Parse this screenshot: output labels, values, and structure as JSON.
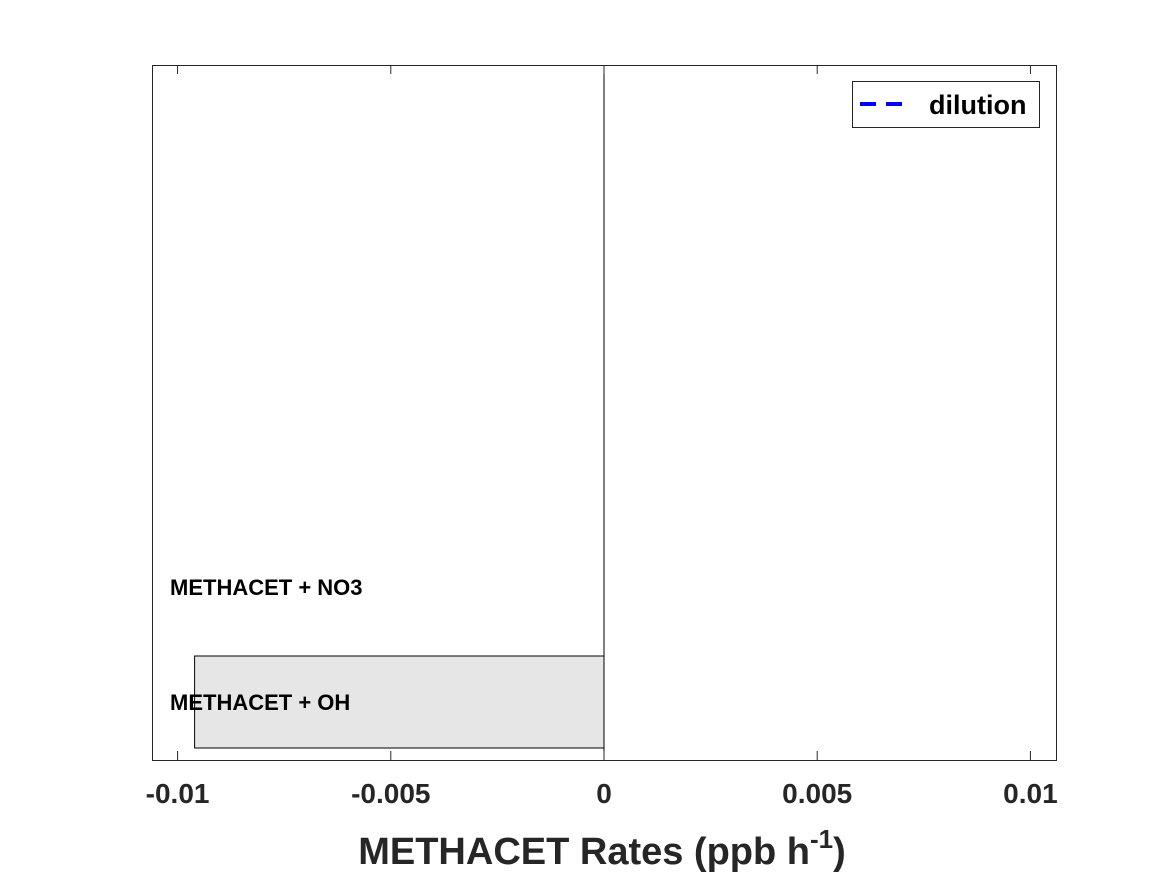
{
  "chart_data": {
    "type": "bar",
    "orientation": "horizontal",
    "categories": [
      "METHACET + OH",
      "METHACET + NO3"
    ],
    "values": [
      -0.0096,
      0
    ],
    "xlim": [
      -0.0106,
      0.0106
    ],
    "xticks": [
      -0.01,
      -0.005,
      0,
      0.005,
      0.01
    ],
    "xtick_labels": [
      "-0.01",
      "-0.005",
      "0",
      "0.005",
      "0.01"
    ],
    "xlabel": "METHACET Rates (ppb h",
    "xlabel_superscript": "-1",
    "xlabel_close": ")",
    "legend": {
      "entries": [
        {
          "name": "dilution",
          "style": "dashed",
          "color": "#0000ff"
        }
      ],
      "placement": "top-right"
    },
    "bar_fill": "#e6e6e6",
    "bar_edge": "#000000",
    "grid": false
  }
}
